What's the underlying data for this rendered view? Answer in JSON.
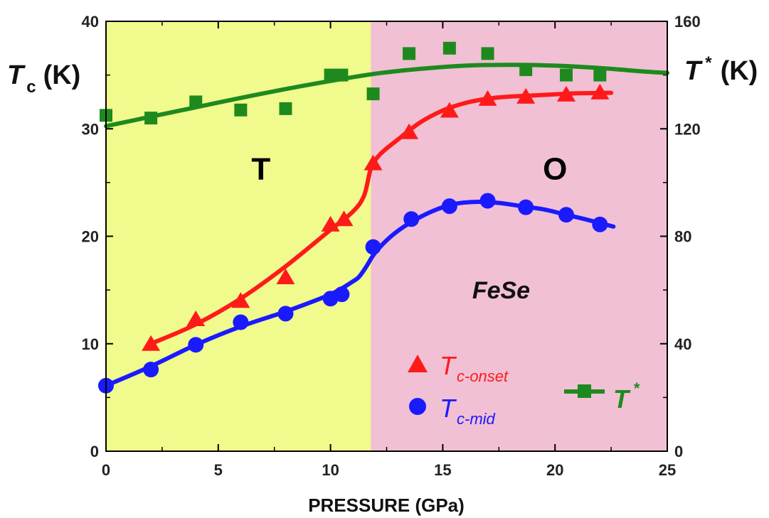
{
  "chart_data": {
    "type": "scatter",
    "x_axis": {
      "label": "PRESSURE (GPa)",
      "range": [
        0,
        25
      ],
      "ticks": [
        0,
        5,
        10,
        15,
        20,
        25
      ]
    },
    "y_axis_left": {
      "label_symbol": "T",
      "label_subscript": "c",
      "label_unit": "(K)",
      "range": [
        0,
        40
      ],
      "ticks": [
        0,
        10,
        20,
        30,
        40
      ]
    },
    "y_axis_right": {
      "label_symbol": "T",
      "label_superscript": "*",
      "label_unit": "(K)",
      "range": [
        0,
        160
      ],
      "ticks": [
        0,
        40,
        80,
        120,
        160
      ]
    },
    "regions": [
      {
        "label": "T",
        "x_range": [
          0,
          11.8
        ],
        "color": "#f1fa8c"
      },
      {
        "label": "O",
        "x_range": [
          11.8,
          25
        ],
        "color": "#f1c0d4"
      }
    ],
    "annotations": [
      {
        "text": "FeSe",
        "x": 17.6,
        "y": 15
      }
    ],
    "series": [
      {
        "name": "Tc-onset",
        "name_main": "T",
        "name_sub": "c-onset",
        "marker": "triangle",
        "color": "#ff1a1a",
        "axis": "left",
        "points": [
          [
            2,
            10
          ],
          [
            4,
            12.3
          ],
          [
            6,
            14
          ],
          [
            8,
            16.2
          ],
          [
            10,
            21.1
          ],
          [
            10.6,
            21.6
          ],
          [
            11.9,
            26.8
          ],
          [
            13.5,
            29.7
          ],
          [
            15.3,
            31.7
          ],
          [
            17,
            32.8
          ],
          [
            18.7,
            33
          ],
          [
            20.5,
            33.2
          ],
          [
            22,
            33.4
          ]
        ],
        "fit": [
          [
            2,
            10
          ],
          [
            4,
            11.8
          ],
          [
            6,
            14.2
          ],
          [
            8,
            17.2
          ],
          [
            10,
            20.6
          ],
          [
            11,
            22.3
          ],
          [
            11.5,
            23.8
          ],
          [
            11.8,
            26.3
          ],
          [
            12.2,
            27.6
          ],
          [
            13,
            29
          ],
          [
            14,
            30.6
          ],
          [
            15,
            31.7
          ],
          [
            16,
            32.4
          ],
          [
            17,
            32.8
          ],
          [
            18,
            33
          ],
          [
            19,
            33.1
          ],
          [
            20,
            33.2
          ],
          [
            21,
            33.3
          ],
          [
            22.5,
            33.35
          ]
        ]
      },
      {
        "name": "Tc-mid",
        "name_main": "T",
        "name_sub": "c-mid",
        "marker": "circle",
        "color": "#1a1aff",
        "axis": "left",
        "points": [
          [
            0,
            6.1
          ],
          [
            2,
            7.6
          ],
          [
            4,
            9.9
          ],
          [
            6,
            12
          ],
          [
            8,
            12.8
          ],
          [
            10,
            14.2
          ],
          [
            10.5,
            14.6
          ],
          [
            11.9,
            19
          ],
          [
            13.6,
            21.6
          ],
          [
            15.3,
            22.8
          ],
          [
            17,
            23.3
          ],
          [
            18.7,
            22.7
          ],
          [
            20.5,
            22
          ],
          [
            22,
            21.1
          ]
        ],
        "fit": [
          [
            0,
            6.1
          ],
          [
            2,
            7.9
          ],
          [
            4,
            9.9
          ],
          [
            6,
            11.6
          ],
          [
            8,
            13
          ],
          [
            10,
            14.6
          ],
          [
            11,
            15.8
          ],
          [
            11.3,
            16.3
          ],
          [
            11.6,
            17.2
          ],
          [
            12,
            18.5
          ],
          [
            12.7,
            20
          ],
          [
            13.5,
            21.2
          ],
          [
            14.5,
            22.3
          ],
          [
            15.5,
            23
          ],
          [
            16.5,
            23.2
          ],
          [
            17.5,
            23.1
          ],
          [
            18.5,
            22.8
          ],
          [
            19.5,
            22.5
          ],
          [
            20.5,
            22
          ],
          [
            21.5,
            21.5
          ],
          [
            22.6,
            20.9
          ]
        ]
      },
      {
        "name": "T*",
        "name_main": "T",
        "name_sup": "*",
        "marker": "square",
        "color": "#1e8a1e",
        "axis": "right",
        "points": [
          [
            0,
            125
          ],
          [
            2,
            124
          ],
          [
            4,
            130
          ],
          [
            6,
            127
          ],
          [
            8,
            127.5
          ],
          [
            10,
            140
          ],
          [
            10.5,
            140
          ],
          [
            11.9,
            133
          ],
          [
            13.5,
            148
          ],
          [
            15.3,
            150
          ],
          [
            17,
            148
          ],
          [
            18.7,
            142
          ],
          [
            20.5,
            140
          ],
          [
            22,
            140
          ]
        ],
        "fit": [
          [
            0,
            121
          ],
          [
            2,
            124.5
          ],
          [
            4,
            128
          ],
          [
            6,
            131.5
          ],
          [
            8,
            134.8
          ],
          [
            10,
            137.8
          ],
          [
            12,
            140.5
          ],
          [
            14,
            142.3
          ],
          [
            16,
            143.5
          ],
          [
            18,
            143.8
          ],
          [
            20,
            143.5
          ],
          [
            22,
            142.6
          ],
          [
            24,
            141.3
          ],
          [
            25,
            140.8
          ]
        ]
      }
    ]
  }
}
